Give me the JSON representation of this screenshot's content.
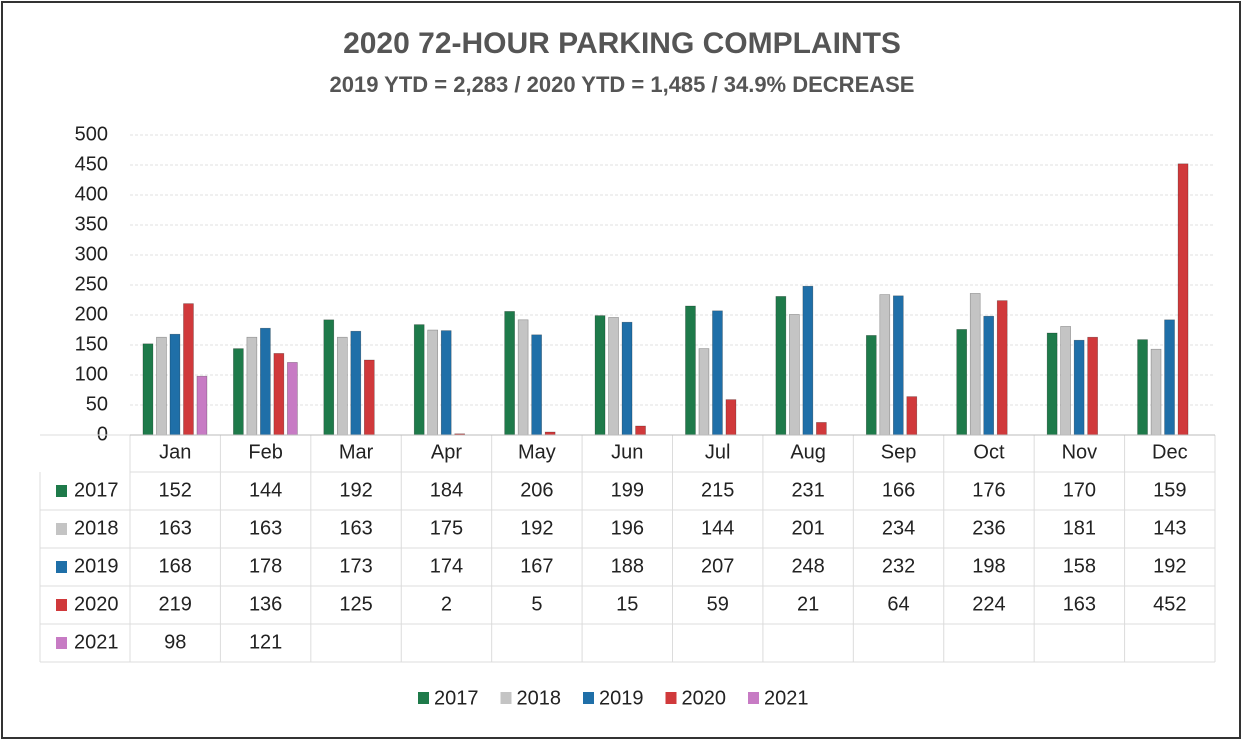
{
  "chart_data": {
    "type": "bar",
    "title": "2020 72-HOUR PARKING COMPLAINTS",
    "subtitle": "2019 YTD =  2,283 / 2020 YTD = 1,485 / 34.9% DECREASE",
    "categories": [
      "Jan",
      "Feb",
      "Mar",
      "Apr",
      "May",
      "Jun",
      "Jul",
      "Aug",
      "Sep",
      "Oct",
      "Nov",
      "Dec"
    ],
    "series": [
      {
        "name": "2017",
        "color": "#1e7a4a",
        "values": [
          152,
          144,
          192,
          184,
          206,
          199,
          215,
          231,
          166,
          176,
          170,
          159
        ]
      },
      {
        "name": "2018",
        "color": "#c4c4c4",
        "values": [
          163,
          163,
          163,
          175,
          192,
          196,
          144,
          201,
          234,
          236,
          181,
          143
        ]
      },
      {
        "name": "2019",
        "color": "#1f6fa8",
        "values": [
          168,
          178,
          173,
          174,
          167,
          188,
          207,
          248,
          232,
          198,
          158,
          192
        ]
      },
      {
        "name": "2020",
        "color": "#d0393b",
        "values": [
          219,
          136,
          125,
          2,
          5,
          15,
          59,
          21,
          64,
          224,
          163,
          452
        ]
      },
      {
        "name": "2021",
        "color": "#c77bc4",
        "values": [
          98,
          121,
          null,
          null,
          null,
          null,
          null,
          null,
          null,
          null,
          null,
          null
        ]
      }
    ],
    "ylim": [
      0,
      500
    ],
    "yticks": [
      0,
      50,
      100,
      150,
      200,
      250,
      300,
      350,
      400,
      450,
      500
    ],
    "grid": true,
    "legend": "bottom"
  }
}
